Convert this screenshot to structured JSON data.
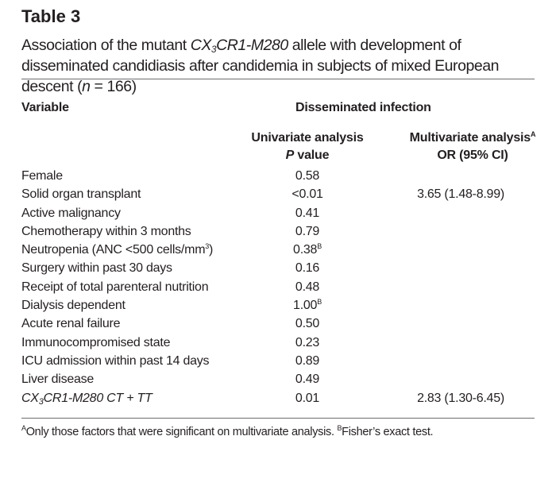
{
  "title": "Table 3",
  "caption": {
    "part1": "Association of the mutant ",
    "gene_part1": "CX",
    "gene_sub": "3",
    "gene_part2": "CR1-M280",
    "part2": " allele with development of disseminated candidiasis after candidemia in subjects of mixed European descent (",
    "n_label": "n",
    "part3": " = 166)"
  },
  "headers": {
    "variable": "Variable",
    "group": "Disseminated infection",
    "univariate_line1": "Univariate analysis",
    "univariate_p": "P",
    "univariate_line2_rest": " value",
    "multivariate_line1": "Multivariate analysis",
    "multivariate_sup": "A",
    "multivariate_line2": "OR (95% CI)"
  },
  "rows": [
    {
      "variable": "Female",
      "univariate": "0.58",
      "multivariate": ""
    },
    {
      "variable": "Solid organ transplant",
      "univariate": "<0.01",
      "multivariate": "3.65 (1.48-8.99)"
    },
    {
      "variable": "Active malignancy",
      "univariate": "0.41",
      "multivariate": ""
    },
    {
      "variable": "Chemotherapy within 3 months",
      "univariate": "0.79",
      "multivariate": ""
    },
    {
      "variable_pre": "Neutropenia (ANC <500 cells/mm",
      "variable_sup": "3",
      "variable_post": ")",
      "univariate": "0.38",
      "univariate_sup": "B",
      "multivariate": ""
    },
    {
      "variable": "Surgery within past 30 days",
      "univariate": "0.16",
      "multivariate": ""
    },
    {
      "variable": "Receipt of total parenteral nutrition",
      "univariate": "0.48",
      "multivariate": ""
    },
    {
      "variable": "Dialysis dependent",
      "univariate": "1.00",
      "univariate_sup": "B",
      "multivariate": ""
    },
    {
      "variable": "Acute renal failure",
      "univariate": "0.50",
      "multivariate": ""
    },
    {
      "variable": "Immunocompromised state",
      "univariate": "0.23",
      "multivariate": ""
    },
    {
      "variable": "ICU admission within past 14 days",
      "univariate": "0.89",
      "multivariate": ""
    },
    {
      "variable": "Liver disease",
      "univariate": "0.49",
      "multivariate": ""
    },
    {
      "variable_italic_a": "CX",
      "variable_italic_sub": "3",
      "variable_italic_b": "CR1-M280 CT + TT",
      "univariate": "0.01",
      "multivariate": "2.83 (1.30-6.45)"
    }
  ],
  "footnote": {
    "sup_a": "A",
    "text_a": "Only those factors that were significant on multivariate analysis. ",
    "sup_b": "B",
    "text_b": "Fisher’s exact test."
  }
}
